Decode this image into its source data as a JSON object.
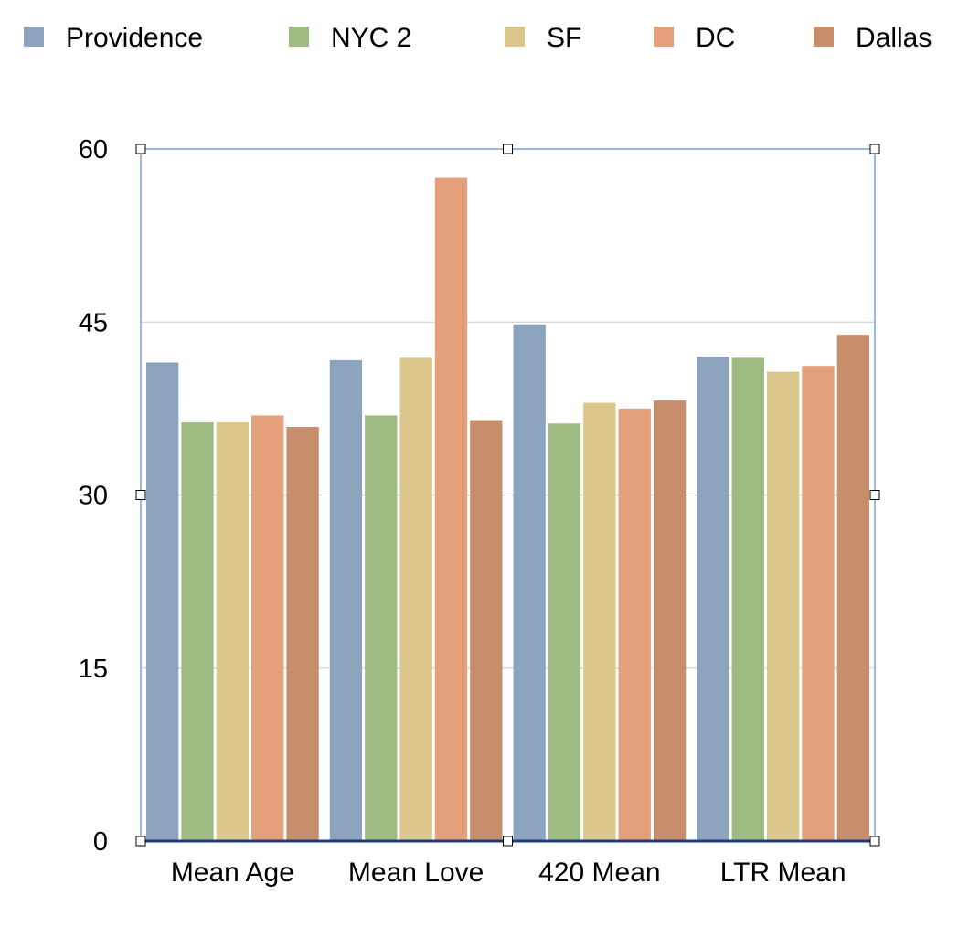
{
  "chart_data": {
    "type": "bar",
    "title": "",
    "xlabel": "",
    "ylabel": "",
    "categories": [
      "Mean Age",
      "Mean Love",
      "420 Mean",
      "LTR Mean"
    ],
    "yticks": [
      "0",
      "15",
      "30",
      "45",
      "60"
    ],
    "ylim": [
      0,
      60
    ],
    "grid": true,
    "legend_position": "top",
    "series": [
      {
        "name": "Providence",
        "color": "#8DA4BE",
        "values": [
          41.5,
          41.7,
          44.8,
          42.0
        ]
      },
      {
        "name": "NYC 2",
        "color": "#9EBB82",
        "values": [
          36.3,
          36.9,
          36.2,
          41.9
        ]
      },
      {
        "name": "SF",
        "color": "#DBC78B",
        "values": [
          36.3,
          41.9,
          38.0,
          40.7
        ]
      },
      {
        "name": "DC",
        "color": "#E3A07A",
        "values": [
          36.9,
          57.5,
          37.5,
          41.2
        ]
      },
      {
        "name": "Dallas",
        "color": "#C78E6C",
        "values": [
          35.9,
          36.5,
          38.2,
          43.9
        ]
      }
    ]
  }
}
